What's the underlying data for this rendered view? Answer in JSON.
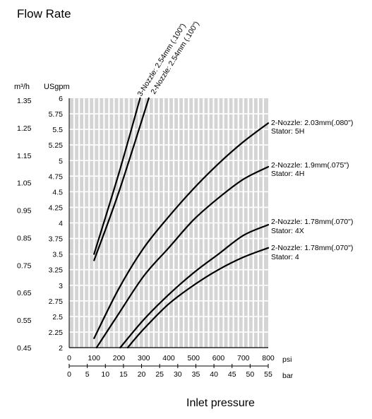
{
  "page_title": "Flow Rate",
  "chart_data": {
    "type": "line",
    "title": "Flow Rate",
    "xlabel": "Inlet pressure",
    "x_units": [
      "psi",
      "bar"
    ],
    "y_units": [
      "m³/h",
      "USgpm"
    ],
    "xlim": [
      0,
      800
    ],
    "ylim": [
      2,
      6
    ],
    "psi_ticks": [
      "0",
      "100",
      "200",
      "300",
      "400",
      "500",
      "600",
      "700",
      "800"
    ],
    "bar_ticks": [
      "0",
      "5",
      "10",
      "15",
      "20",
      "25",
      "30",
      "35",
      "40",
      "45",
      "50",
      "55"
    ],
    "gpm_ticks": [
      "6",
      "5.75",
      "5.5",
      "5.25",
      "5",
      "4.75",
      "4.5",
      "4.25",
      "4",
      "3.75",
      "3.5",
      "3.25",
      "3",
      "2.75",
      "2.5",
      "2.25",
      "2"
    ],
    "m3h_ticks": [
      "1.35",
      "1.25",
      "1.15",
      "1.05",
      "0.95",
      "0.85",
      "0.75",
      "0.65",
      "0.55",
      "0.45"
    ],
    "grid": true,
    "series": [
      {
        "name": "3-Nozzle: 2.54mm (.100\")",
        "x": [
          100,
          200,
          285
        ],
        "y": [
          3.5,
          4.8,
          6.0
        ]
      },
      {
        "name": "2-Nozzle: 2.54mm (.100\")",
        "x": [
          100,
          200,
          320
        ],
        "y": [
          3.4,
          4.5,
          6.0
        ]
      },
      {
        "name": "2-Nozzle: 2.03mm(.080\") Stator: 5H",
        "x": [
          100,
          200,
          300,
          400,
          500,
          600,
          700,
          800
        ],
        "y": [
          2.15,
          2.95,
          3.6,
          4.1,
          4.55,
          4.95,
          5.3,
          5.6
        ]
      },
      {
        "name": "2-Nozzle: 1.9mm(.075\") Stator: 4H",
        "x": [
          110,
          200,
          300,
          400,
          500,
          600,
          700,
          800
        ],
        "y": [
          2.0,
          2.55,
          3.15,
          3.6,
          4.05,
          4.4,
          4.7,
          4.9
        ]
      },
      {
        "name": "2-Nozzle: 1.78mm(.070\") Stator: 4X",
        "x": [
          205,
          300,
          400,
          500,
          600,
          700,
          800
        ],
        "y": [
          2.0,
          2.45,
          2.85,
          3.2,
          3.5,
          3.8,
          3.97
        ]
      },
      {
        "name": "2-Nozzle: 1.78mm(.070\") Stator: 4",
        "x": [
          235,
          300,
          400,
          500,
          600,
          700,
          800
        ],
        "y": [
          2.0,
          2.3,
          2.7,
          3.0,
          3.25,
          3.45,
          3.6
        ]
      }
    ]
  }
}
